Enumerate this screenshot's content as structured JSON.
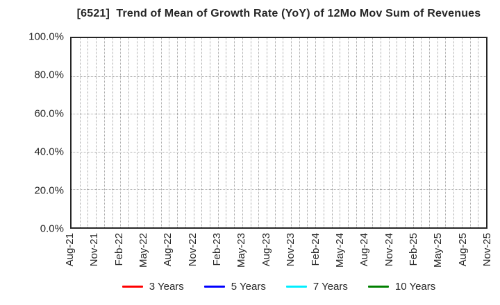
{
  "colors": {
    "background": "#ffffff",
    "frame": "#262626",
    "grid": "#a6a6a6",
    "text": "#262626"
  },
  "chart_data": {
    "type": "line",
    "title": "[6521]  Trend of Mean of Growth Rate (YoY) of 12Mo Mov Sum of Revenues",
    "xlabel": "",
    "ylabel": "",
    "ylim": [
      0,
      100
    ],
    "grid": true,
    "legend_position": "bottom",
    "x_points_total": 52,
    "months_between_labels": 3,
    "x_tick_labels": [
      "Aug-21",
      "Nov-21",
      "Feb-22",
      "May-22",
      "Aug-22",
      "Nov-22",
      "Feb-23",
      "May-23",
      "Aug-23",
      "Nov-23",
      "Feb-24",
      "May-24",
      "Aug-24",
      "Nov-24",
      "Feb-25",
      "May-25",
      "Aug-25",
      "Nov-25"
    ],
    "y_ticks": [
      0,
      20,
      40,
      60,
      80,
      100
    ],
    "y_tick_labels": [
      "0.0%",
      "20.0%",
      "40.0%",
      "60.0%",
      "80.0%",
      "100.0%"
    ],
    "series": [
      {
        "name": "3 Years",
        "color": "#ff0000",
        "values": []
      },
      {
        "name": "5 Years",
        "color": "#0000ff",
        "values": []
      },
      {
        "name": "7 Years",
        "color": "#00eeff",
        "values": []
      },
      {
        "name": "10 Years",
        "color": "#008000",
        "values": []
      }
    ]
  }
}
